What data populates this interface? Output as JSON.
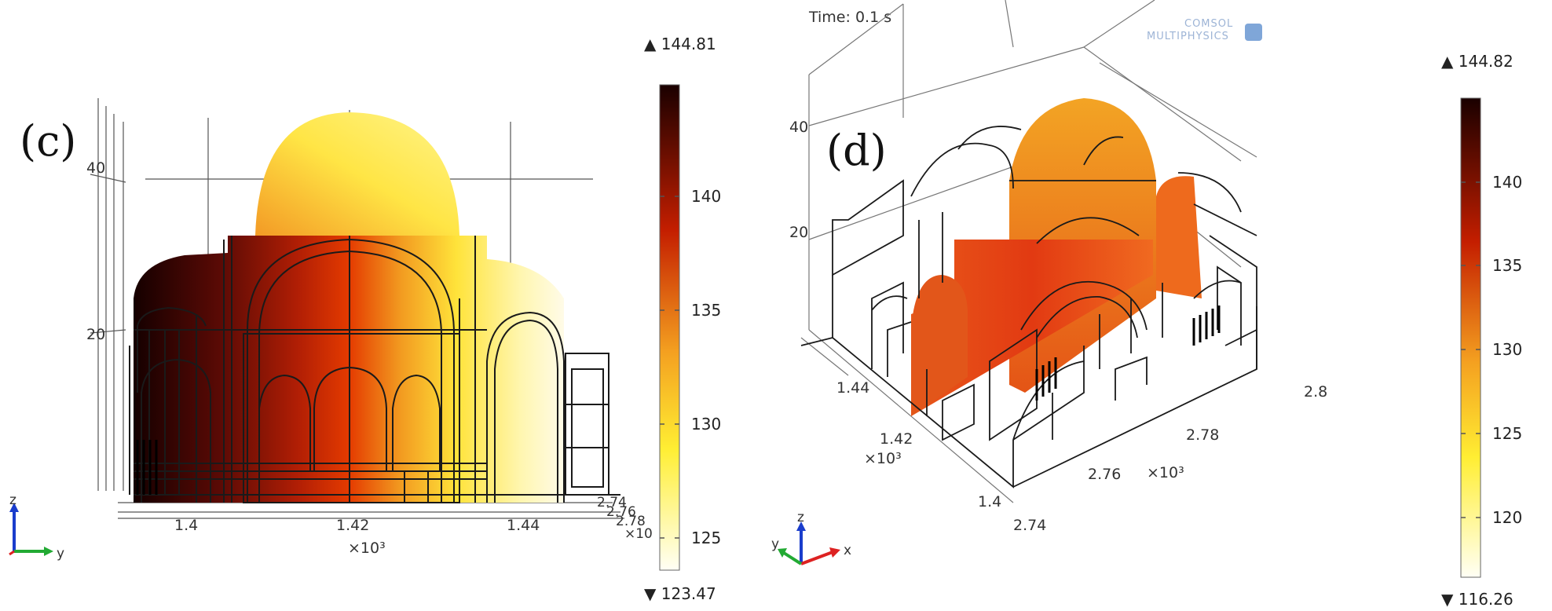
{
  "panel_c": {
    "label": "(c)",
    "colorbar": {
      "max_label": "▲ 144.81",
      "min_label": "▼ 123.47",
      "ticks": [
        "140",
        "135",
        "130",
        "125"
      ]
    },
    "axes": {
      "z_ticks": [
        "40",
        "20"
      ],
      "y_ticks": [
        "1.4",
        "1.42",
        "1.44"
      ],
      "y_multiplier": "×10³",
      "x_ticks": [
        "2.74",
        "2.76",
        "2.78"
      ],
      "x_multiplier": "×10"
    },
    "triad": {
      "z": "z",
      "y": "y"
    }
  },
  "panel_d": {
    "label": "(d)",
    "time": "Time: 0.1 s",
    "logo_line1": "COMSOL",
    "logo_line2": "MULTIPHYSICS",
    "colorbar": {
      "max_label": "▲ 144.82",
      "min_label": "▼ 116.26",
      "ticks": [
        "140",
        "135",
        "130",
        "125",
        "120"
      ]
    },
    "axes": {
      "z_ticks": [
        "40",
        "20"
      ],
      "y_ticks": [
        "1.44",
        "1.42",
        "1.4"
      ],
      "y_multiplier": "×10³",
      "x_ticks": [
        "2.74",
        "2.76",
        "2.78",
        "2.8"
      ],
      "x_multiplier": "×10³"
    },
    "triad": {
      "z": "z",
      "y": "y",
      "x": "x"
    }
  },
  "colors": {
    "heat_black": "#1a0000",
    "heat_red": "#d62a00",
    "heat_orange": "#f5a020",
    "heat_yellow": "#ffee33",
    "heat_white": "#fffff0"
  }
}
